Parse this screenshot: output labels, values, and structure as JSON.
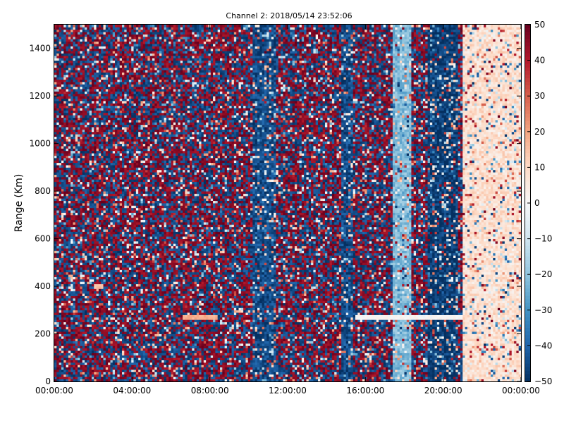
{
  "chart_data": {
    "type": "heatmap",
    "title": "Channel 2: 2018/05/14 23:52:06",
    "xlabel": "",
    "ylabel": "Range (Km)",
    "x_tick_labels": [
      "00:00:00",
      "04:00:00",
      "08:00:00",
      "12:00:00",
      "16:00:00",
      "20:00:00",
      "00:00:00"
    ],
    "x_ticks_hours": [
      0,
      4,
      8,
      12,
      16,
      20,
      24
    ],
    "xlim_hours": [
      0,
      24
    ],
    "y_ticks": [
      0,
      200,
      400,
      600,
      800,
      1000,
      1200,
      1400
    ],
    "y_tick_labels": [
      "0",
      "200",
      "400",
      "600",
      "800",
      "1000",
      "1200",
      "1400"
    ],
    "ylim": [
      0,
      1500
    ],
    "colorbar": {
      "ticks": [
        50,
        40,
        30,
        20,
        10,
        0,
        -10,
        -20,
        -30,
        -40,
        -50
      ],
      "tick_labels": [
        "50",
        "40",
        "30",
        "20",
        "10",
        "0",
        "−10",
        "−20",
        "−30",
        "−40",
        "−50"
      ],
      "range": [
        -50,
        50
      ],
      "colormap": "RdBu_r"
    },
    "grid": false,
    "features": [
      {
        "description": "predominantly noise field of random values spanning -50 to 50"
      },
      {
        "start_hour": 10.2,
        "end_hour": 11.4,
        "typical_value": -45
      },
      {
        "start_hour": 14.8,
        "end_hour": 15.4,
        "typical_value": -45
      },
      {
        "start_hour": 17.4,
        "end_hour": 18.4,
        "typical_value": -22
      },
      {
        "start_hour": 19.2,
        "end_hour": 20.8,
        "typical_value": -48
      },
      {
        "start_hour": 21.0,
        "end_hour": 24.0,
        "typical_value": 8
      },
      {
        "start_hour": 6.6,
        "end_hour": 8.4,
        "range_km": 270,
        "value": 18
      },
      {
        "start_hour": 15.5,
        "end_hour": 21.0,
        "range_km": 270,
        "value": 0
      },
      {
        "start_hour": 2.0,
        "end_hour": 2.5,
        "range_km": 400,
        "value": 15
      }
    ]
  },
  "colors": {
    "min": "#053061",
    "mid": "#f7f7f7",
    "max": "#67001f"
  }
}
